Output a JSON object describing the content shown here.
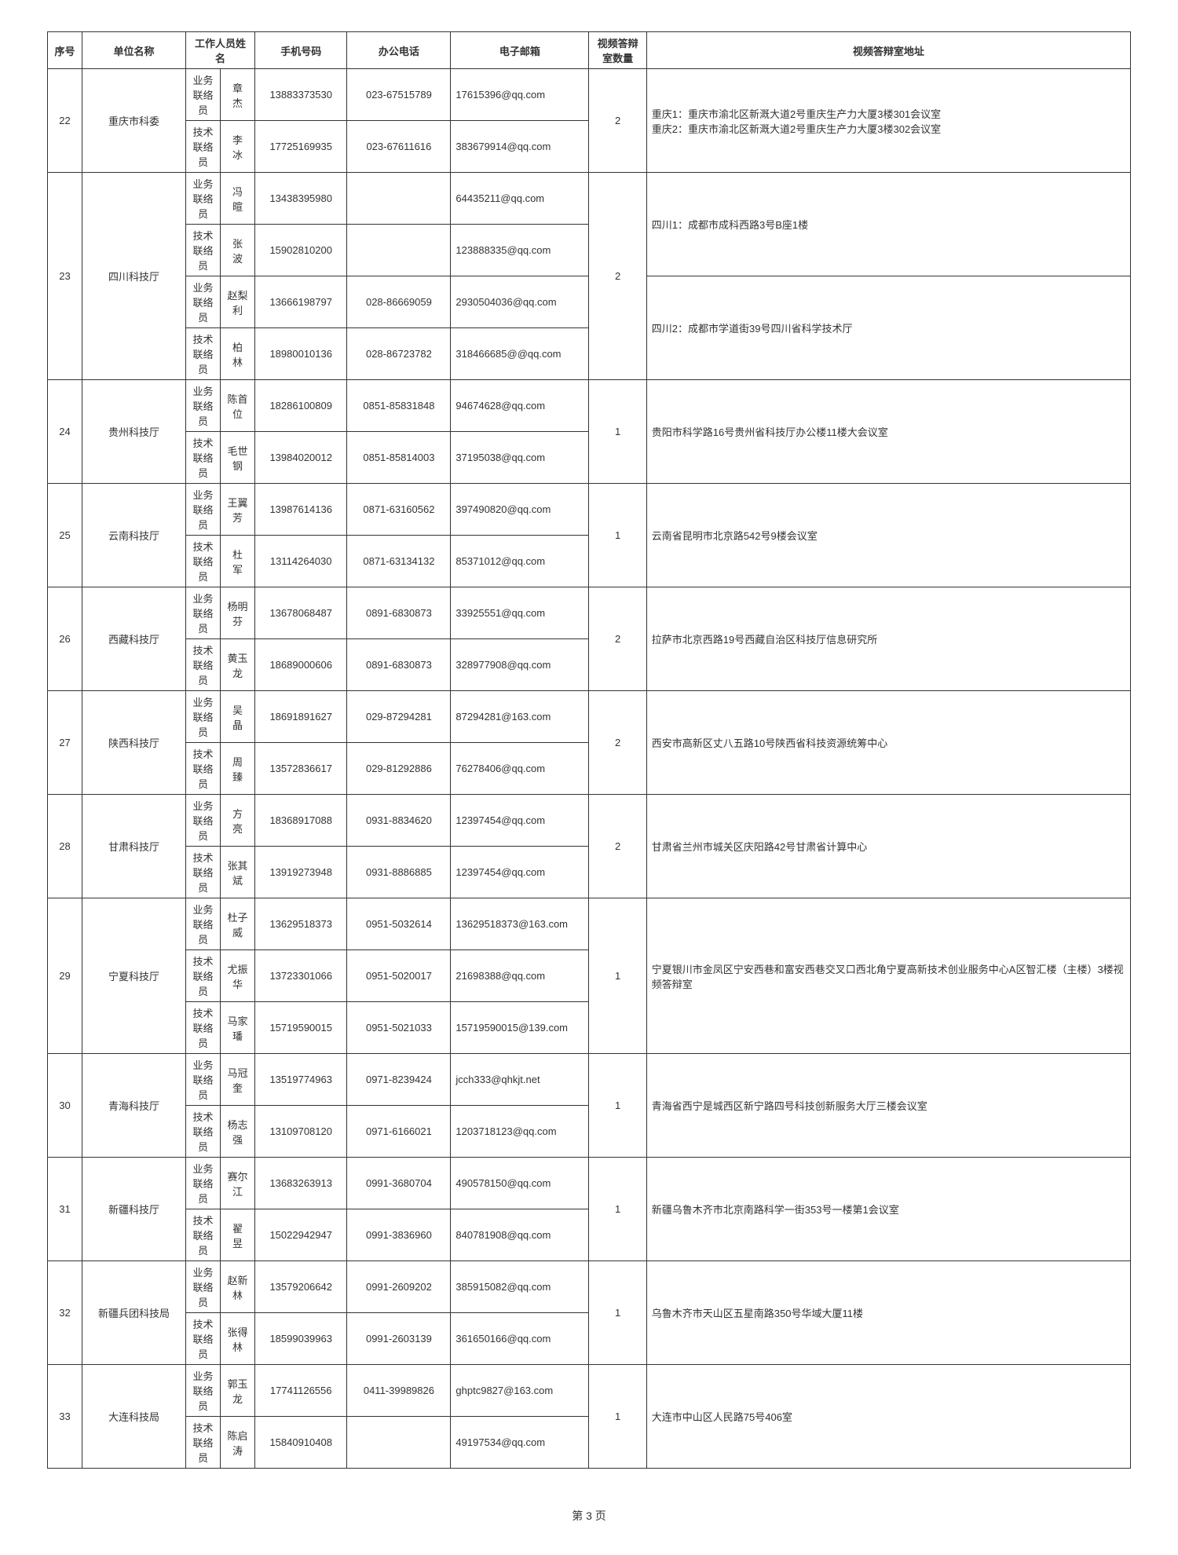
{
  "headers": {
    "seq": "序号",
    "unit": "单位名称",
    "staff": "工作人员姓名",
    "phone": "手机号码",
    "tel": "办公电话",
    "email": "电子邮箱",
    "rooms": "视频答辩室数量",
    "addr": "视频答辩室地址"
  },
  "roles": {
    "biz": "业务联络员",
    "tech": "技术联络员"
  },
  "page_label": "第 3 页",
  "entries": [
    {
      "seq": "22",
      "unit": "重庆市科委",
      "rooms": "2",
      "addr": [
        "重庆1：重庆市渝北区新溉大道2号重庆生产力大厦3楼301会议室",
        "重庆2：重庆市渝北区新溉大道2号重庆生产力大厦3楼302会议室"
      ],
      "staff": [
        {
          "role": "biz",
          "name": "章　杰",
          "phone": "13883373530",
          "tel": "023-67515789",
          "email": "17615396@qq.com"
        },
        {
          "role": "tech",
          "name": "李　冰",
          "phone": "17725169935",
          "tel": "023-67611616",
          "email": "383679914@qq.com"
        }
      ]
    },
    {
      "seq": "23",
      "unit": "四川科技厅",
      "rooms": "2",
      "addr": [
        "四川1：成都市成科西路3号B座1楼",
        "四川2：成都市学道街39号四川省科学技术厅"
      ],
      "addr_span": [
        2,
        2
      ],
      "staff": [
        {
          "role": "biz",
          "name": "冯　暄",
          "phone": "13438395980",
          "tel": "",
          "email": "64435211@qq.com"
        },
        {
          "role": "tech",
          "name": "张　波",
          "phone": "15902810200",
          "tel": "",
          "email": "123888335@qq.com"
        },
        {
          "role": "biz",
          "name": "赵梨利",
          "phone": "13666198797",
          "tel": "028-86669059",
          "email": "2930504036@qq.com"
        },
        {
          "role": "tech",
          "name": "柏　林",
          "phone": "18980010136",
          "tel": "028-86723782",
          "email": "318466685@@qq.com"
        }
      ]
    },
    {
      "seq": "24",
      "unit": "贵州科技厅",
      "rooms": "1",
      "addr": [
        "贵阳市科学路16号贵州省科技厅办公楼11楼大会议室"
      ],
      "staff": [
        {
          "role": "biz",
          "name": "陈首位",
          "phone": "18286100809",
          "tel": "0851-85831848",
          "email": "94674628@qq.com"
        },
        {
          "role": "tech",
          "name": "毛世钢",
          "phone": "13984020012",
          "tel": "0851-85814003",
          "email": "37195038@qq.com"
        }
      ]
    },
    {
      "seq": "25",
      "unit": "云南科技厅",
      "rooms": "1",
      "addr": [
        "云南省昆明市北京路542号9楼会议室"
      ],
      "staff": [
        {
          "role": "biz",
          "name": "王翼芳",
          "phone": "13987614136",
          "tel": "0871-63160562",
          "email": "397490820@qq.com"
        },
        {
          "role": "tech",
          "name": "杜　军",
          "phone": "13114264030",
          "tel": "0871-63134132",
          "email": "85371012@qq.com"
        }
      ]
    },
    {
      "seq": "26",
      "unit": "西藏科技厅",
      "rooms": "2",
      "addr": [
        "拉萨市北京西路19号西藏自治区科技厅信息研究所"
      ],
      "staff": [
        {
          "role": "biz",
          "name": "杨明芬",
          "phone": "13678068487",
          "tel": "0891-6830873",
          "email": "33925551@qq.com"
        },
        {
          "role": "tech",
          "name": "黄玉龙",
          "phone": "18689000606",
          "tel": "0891-6830873",
          "email": "328977908@qq.com"
        }
      ]
    },
    {
      "seq": "27",
      "unit": "陕西科技厅",
      "rooms": "2",
      "addr": [
        "西安市高新区丈八五路10号陕西省科技资源统筹中心"
      ],
      "staff": [
        {
          "role": "biz",
          "name": "吴　晶",
          "phone": "18691891627",
          "tel": "029-87294281",
          "email": "87294281@163.com"
        },
        {
          "role": "tech",
          "name": "周　臻",
          "phone": "13572836617",
          "tel": "029-81292886",
          "email": "76278406@qq.com"
        }
      ]
    },
    {
      "seq": "28",
      "unit": "甘肃科技厅",
      "rooms": "2",
      "addr": [
        "甘肃省兰州市城关区庆阳路42号甘肃省计算中心"
      ],
      "staff": [
        {
          "role": "biz",
          "name": "方　亮",
          "phone": "18368917088",
          "tel": "0931-8834620",
          "email": "12397454@qq.com"
        },
        {
          "role": "tech",
          "name": "张其斌",
          "phone": "13919273948",
          "tel": "0931-8886885",
          "email": "12397454@qq.com"
        }
      ]
    },
    {
      "seq": "29",
      "unit": "宁夏科技厅",
      "rooms": "1",
      "addr": [
        "宁夏银川市金凤区宁安西巷和富安西巷交叉口西北角宁夏高新技术创业服务中心A区智汇楼（主楼）3楼视频答辩室"
      ],
      "staff": [
        {
          "role": "biz",
          "name": "杜子威",
          "phone": "13629518373",
          "tel": "0951-5032614",
          "email": "13629518373@163.com"
        },
        {
          "role": "tech",
          "name": "尤振华",
          "phone": "13723301066",
          "tel": "0951-5020017",
          "email": "21698388@qq.com"
        },
        {
          "role": "tech",
          "name": "马家璠",
          "phone": "15719590015",
          "tel": "0951-5021033",
          "email": "15719590015@139.com"
        }
      ]
    },
    {
      "seq": "30",
      "unit": "青海科技厅",
      "rooms": "1",
      "addr": [
        "青海省西宁是城西区新宁路四号科技创新服务大厅三楼会议室"
      ],
      "staff": [
        {
          "role": "biz",
          "name": "马冠奎",
          "phone": "13519774963",
          "tel": "0971-8239424",
          "email": "jcch333@qhkjt.net"
        },
        {
          "role": "tech",
          "name": "杨志强",
          "phone": "13109708120",
          "tel": "0971-6166021",
          "email": "1203718123@qq.com"
        }
      ]
    },
    {
      "seq": "31",
      "unit": "新疆科技厅",
      "rooms": "1",
      "addr": [
        "新疆乌鲁木齐市北京南路科学一街353号一楼第1会议室"
      ],
      "staff": [
        {
          "role": "biz",
          "name": "赛尔江",
          "phone": "13683263913",
          "tel": "0991-3680704",
          "email": "490578150@qq.com"
        },
        {
          "role": "tech",
          "name": "翟　昱",
          "phone": "15022942947",
          "tel": "0991-3836960",
          "email": "840781908@qq.com"
        }
      ]
    },
    {
      "seq": "32",
      "unit": "新疆兵团科技局",
      "rooms": "1",
      "addr": [
        "乌鲁木齐市天山区五星南路350号华域大厦11楼"
      ],
      "staff": [
        {
          "role": "biz",
          "name": "赵新林",
          "phone": "13579206642",
          "tel": "0991-2609202",
          "email": "385915082@qq.com"
        },
        {
          "role": "tech",
          "name": "张得林",
          "phone": "18599039963",
          "tel": "0991-2603139",
          "email": "361650166@qq.com"
        }
      ]
    },
    {
      "seq": "33",
      "unit": "大连科技局",
      "rooms": "1",
      "addr": [
        "大连市中山区人民路75号406室"
      ],
      "staff": [
        {
          "role": "biz",
          "name": "郭玉龙",
          "phone": "17741126556",
          "tel": "0411-39989826",
          "email": "ghptc9827@163.com"
        },
        {
          "role": "tech",
          "name": "陈启涛",
          "phone": "15840910408",
          "tel": "",
          "email": "49197534@qq.com"
        }
      ]
    }
  ]
}
